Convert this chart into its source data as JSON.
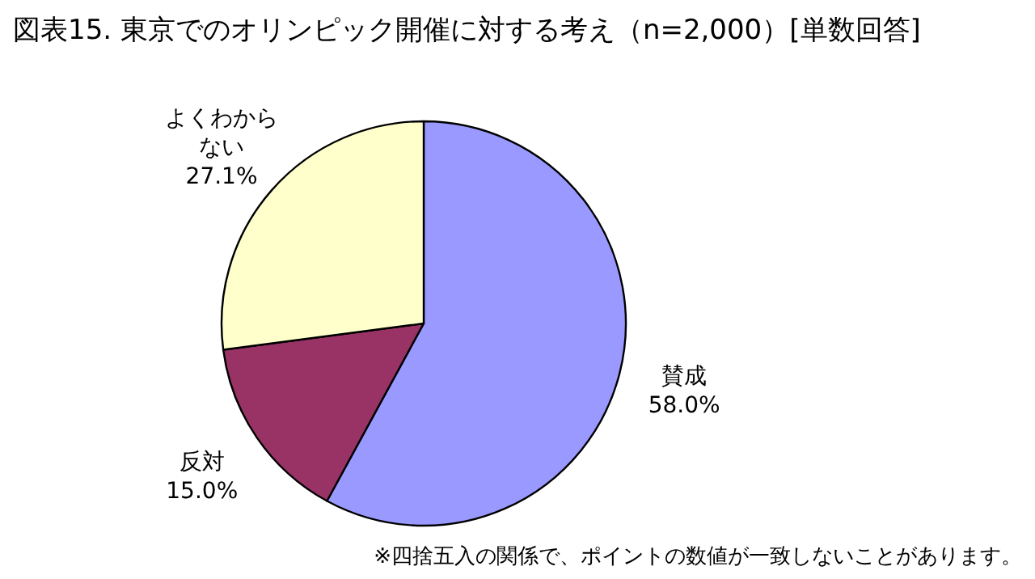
{
  "chart_data": {
    "type": "pie",
    "title": "図表15. 東京でのオリンピック開催に対する考え（n=2,000）[単数回答]",
    "categories": [
      "賛成",
      "反対",
      "よくわからない"
    ],
    "values": [
      58.0,
      15.0,
      27.1
    ],
    "colors": [
      "#9999ff",
      "#993366",
      "#ffffcc"
    ],
    "value_labels": [
      "58.0%",
      "15.0%",
      "27.1%"
    ],
    "annotations": [
      "※四捨五入の関係で、ポイントの数値が一致しないことがあります。"
    ]
  }
}
